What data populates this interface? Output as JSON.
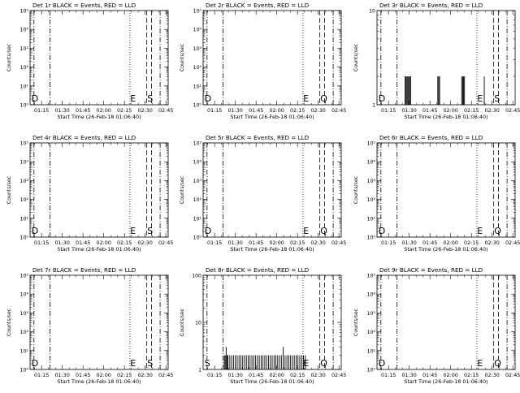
{
  "figure": {
    "background": "#ffffff",
    "ink_color": "#000000",
    "trace_color_events": "#000000"
  },
  "chart_data": [
    {
      "type": "line",
      "title": "Det 1r BLACK = Events, RED = LLD",
      "xlabel": "Start Time (26-Feb-18 01:06:40)",
      "ylabel": "Counts/sec",
      "xlim": [
        "01:06:40",
        "02:46:40"
      ],
      "x_ticks": [
        "01:15",
        "01:30",
        "01:45",
        "02:00",
        "02:15",
        "02:30",
        "02:45"
      ],
      "y_scale": "log",
      "ylim": [
        1,
        100000
      ],
      "y_ticks": [
        "10^0",
        "10^1",
        "10^2",
        "10^3",
        "10^4",
        "10^5"
      ],
      "markers": [
        {
          "time": "01:09:30",
          "style": "dash-dot"
        },
        {
          "time": "01:21:10",
          "style": "dash-dot"
        },
        {
          "time": "02:19:00",
          "style": "dotted"
        },
        {
          "time": "02:31:10",
          "style": "dashed"
        },
        {
          "time": "02:34:40",
          "style": "dashed"
        },
        {
          "time": "02:40:50",
          "style": "dash-dot"
        }
      ],
      "marker_labels": [
        {
          "text": "D",
          "time": "01:07:40"
        },
        {
          "text": "E",
          "time": "02:19:10"
        },
        {
          "text": "S",
          "time": "02:31:30"
        }
      ],
      "series": []
    },
    {
      "type": "line",
      "title": "Det 2r BLACK = Events, RED = LLD",
      "xlabel": "Start Time (26-Feb-18 01:06:40)",
      "ylabel": "Counts/sec",
      "xlim": [
        "01:06:40",
        "02:46:40"
      ],
      "x_ticks": [
        "01:15",
        "01:30",
        "01:45",
        "02:00",
        "02:15",
        "02:30",
        "02:45"
      ],
      "y_scale": "log",
      "ylim": [
        1,
        100000
      ],
      "y_ticks": [
        "10^0",
        "10^1",
        "10^2",
        "10^3",
        "10^4",
        "10^5"
      ],
      "markers": [
        {
          "time": "01:09:30",
          "style": "dash-dot"
        },
        {
          "time": "01:21:10",
          "style": "dash-dot"
        },
        {
          "time": "02:19:00",
          "style": "dotted"
        },
        {
          "time": "02:31:10",
          "style": "dashed"
        },
        {
          "time": "02:34:40",
          "style": "dashed"
        },
        {
          "time": "02:40:50",
          "style": "dash-dot"
        }
      ],
      "marker_labels": [
        {
          "text": "D",
          "time": "01:07:40"
        },
        {
          "text": "E",
          "time": "02:19:10"
        },
        {
          "text": "Q",
          "time": "02:31:30"
        }
      ],
      "series": []
    },
    {
      "type": "line",
      "title": "Det 3r BLACK = Events, RED = LLD",
      "xlabel": "Start Time (26-Feb-18 01:06:40)",
      "ylabel": "Counts/sec",
      "xlim": [
        "01:06:40",
        "02:46:40"
      ],
      "x_ticks": [
        "01:15",
        "01:30",
        "01:45",
        "02:00",
        "02:15",
        "02:30",
        "02:45"
      ],
      "y_scale": "log",
      "ylim": [
        1,
        10
      ],
      "y_ticks": [
        "1",
        "10"
      ],
      "markers": [
        {
          "time": "01:09:30",
          "style": "dash-dot"
        },
        {
          "time": "01:21:10",
          "style": "dash-dot"
        },
        {
          "time": "02:19:00",
          "style": "dotted"
        },
        {
          "time": "02:31:10",
          "style": "dashed"
        },
        {
          "time": "02:34:40",
          "style": "dashed"
        },
        {
          "time": "02:40:50",
          "style": "dash-dot"
        }
      ],
      "marker_labels": [
        {
          "text": "D",
          "time": "01:07:40"
        },
        {
          "text": "E",
          "time": "02:19:10"
        },
        {
          "text": "S",
          "time": "02:31:30"
        }
      ],
      "series": [
        {
          "spikes": [
            {
              "time": "01:27:00",
              "value": 2
            },
            {
              "time": "01:27:40",
              "value": 2
            },
            {
              "time": "01:28:20",
              "value": 2
            },
            {
              "time": "01:29:00",
              "value": 2
            },
            {
              "time": "01:29:40",
              "value": 2
            },
            {
              "time": "01:30:20",
              "value": 2
            },
            {
              "time": "01:31:00",
              "value": 2
            },
            {
              "time": "01:50:40",
              "value": 2
            },
            {
              "time": "01:51:20",
              "value": 2
            },
            {
              "time": "01:52:00",
              "value": 2
            },
            {
              "time": "02:08:00",
              "value": 2
            },
            {
              "time": "02:08:40",
              "value": 2
            },
            {
              "time": "02:09:20",
              "value": 2
            },
            {
              "time": "02:10:00",
              "value": 2
            },
            {
              "time": "02:24:20",
              "value": 2
            }
          ]
        }
      ]
    },
    {
      "type": "line",
      "title": "Det 4r BLACK = Events, RED = LLD",
      "xlabel": "Start Time (26-Feb-18 01:06:40)",
      "ylabel": "Counts/sec",
      "xlim": [
        "01:06:40",
        "02:46:40"
      ],
      "x_ticks": [
        "01:15",
        "01:30",
        "01:45",
        "02:00",
        "02:15",
        "02:30",
        "02:45"
      ],
      "y_scale": "log",
      "ylim": [
        1,
        100000
      ],
      "y_ticks": [
        "10^0",
        "10^1",
        "10^2",
        "10^3",
        "10^4",
        "10^5"
      ],
      "markers": [
        {
          "time": "01:09:30",
          "style": "dash-dot"
        },
        {
          "time": "01:21:10",
          "style": "dash-dot"
        },
        {
          "time": "02:19:00",
          "style": "dotted"
        },
        {
          "time": "02:31:10",
          "style": "dashed"
        },
        {
          "time": "02:34:40",
          "style": "dashed"
        },
        {
          "time": "02:40:50",
          "style": "dash-dot"
        }
      ],
      "marker_labels": [
        {
          "text": "D",
          "time": "01:07:40"
        },
        {
          "text": "E",
          "time": "02:19:10"
        },
        {
          "text": "S",
          "time": "02:31:30"
        }
      ],
      "series": []
    },
    {
      "type": "line",
      "title": "Det 5r BLACK = Events, RED = LLD",
      "xlabel": "Start Time (26-Feb-18 01:06:40)",
      "ylabel": "Counts/sec",
      "xlim": [
        "01:06:40",
        "02:46:40"
      ],
      "x_ticks": [
        "01:15",
        "01:30",
        "01:45",
        "02:00",
        "02:15",
        "02:30",
        "02:45"
      ],
      "y_scale": "log",
      "ylim": [
        1,
        100000
      ],
      "y_ticks": [
        "10^0",
        "10^1",
        "10^2",
        "10^3",
        "10^4",
        "10^5"
      ],
      "markers": [
        {
          "time": "01:09:30",
          "style": "dash-dot"
        },
        {
          "time": "01:21:10",
          "style": "dash-dot"
        },
        {
          "time": "02:19:00",
          "style": "dotted"
        },
        {
          "time": "02:31:10",
          "style": "dashed"
        },
        {
          "time": "02:34:40",
          "style": "dashed"
        },
        {
          "time": "02:40:50",
          "style": "dash-dot"
        }
      ],
      "marker_labels": [
        {
          "text": "D",
          "time": "01:07:40"
        },
        {
          "text": "E",
          "time": "02:19:10"
        },
        {
          "text": "Q",
          "time": "02:31:30"
        }
      ],
      "series": []
    },
    {
      "type": "line",
      "title": "Det 6r BLACK = Events, RED = LLD",
      "xlabel": "Start Time (26-Feb-18 01:06:40)",
      "ylabel": "Counts/sec",
      "xlim": [
        "01:06:40",
        "02:46:40"
      ],
      "x_ticks": [
        "01:15",
        "01:30",
        "01:45",
        "02:00",
        "02:15",
        "02:30",
        "02:45"
      ],
      "y_scale": "log",
      "ylim": [
        1,
        100000
      ],
      "y_ticks": [
        "10^0",
        "10^1",
        "10^2",
        "10^3",
        "10^4",
        "10^5"
      ],
      "markers": [
        {
          "time": "01:09:30",
          "style": "dash-dot"
        },
        {
          "time": "01:21:10",
          "style": "dash-dot"
        },
        {
          "time": "02:19:00",
          "style": "dotted"
        },
        {
          "time": "02:31:10",
          "style": "dashed"
        },
        {
          "time": "02:34:40",
          "style": "dashed"
        },
        {
          "time": "02:40:50",
          "style": "dash-dot"
        }
      ],
      "marker_labels": [
        {
          "text": "D",
          "time": "01:07:40"
        },
        {
          "text": "E",
          "time": "02:19:10"
        },
        {
          "text": "Q",
          "time": "02:31:30"
        }
      ],
      "series": []
    },
    {
      "type": "line",
      "title": "Det 7r BLACK = Events, RED = LLD",
      "xlabel": "Start Time (26-Feb-18 01:06:40)",
      "ylabel": "Counts/sec",
      "xlim": [
        "01:06:40",
        "02:46:40"
      ],
      "x_ticks": [
        "01:15",
        "01:30",
        "01:45",
        "02:00",
        "02:15",
        "02:30",
        "02:45"
      ],
      "y_scale": "log",
      "ylim": [
        1,
        100000
      ],
      "y_ticks": [
        "10^0",
        "10^1",
        "10^2",
        "10^3",
        "10^4",
        "10^5"
      ],
      "markers": [
        {
          "time": "01:09:30",
          "style": "dash-dot"
        },
        {
          "time": "01:21:10",
          "style": "dash-dot"
        },
        {
          "time": "02:19:00",
          "style": "dotted"
        },
        {
          "time": "02:31:10",
          "style": "dashed"
        },
        {
          "time": "02:34:40",
          "style": "dashed"
        },
        {
          "time": "02:40:50",
          "style": "dash-dot"
        }
      ],
      "marker_labels": [
        {
          "text": "D",
          "time": "01:07:40"
        },
        {
          "text": "E",
          "time": "02:19:10"
        },
        {
          "text": "S",
          "time": "02:31:30"
        }
      ],
      "series": []
    },
    {
      "type": "line",
      "title": "Det 8r BLACK = Events, RED = LLD",
      "xlabel": "Start Time (26-Feb-18 01:06:40)",
      "ylabel": "Counts/sec",
      "xlim": [
        "01:06:40",
        "02:46:40"
      ],
      "x_ticks": [
        "01:15",
        "01:30",
        "01:45",
        "02:00",
        "02:15",
        "02:30",
        "02:45"
      ],
      "y_scale": "log",
      "ylim": [
        1,
        100
      ],
      "y_ticks": [
        "1",
        "10",
        "100"
      ],
      "markers": [
        {
          "time": "01:09:30",
          "style": "dash-dot"
        },
        {
          "time": "01:21:10",
          "style": "dash-dot"
        },
        {
          "time": "02:19:00",
          "style": "dotted"
        },
        {
          "time": "02:31:10",
          "style": "dashed"
        },
        {
          "time": "02:34:40",
          "style": "dashed"
        },
        {
          "time": "02:40:50",
          "style": "dash-dot"
        }
      ],
      "marker_labels": [
        {
          "text": "S",
          "time": "01:07:40"
        },
        {
          "text": "E",
          "time": "02:19:10"
        },
        {
          "text": "Q",
          "time": "02:31:30"
        }
      ],
      "series": [
        {
          "spikes": [
            {
              "time": "01:22:00",
              "value": 2
            },
            {
              "time": "01:22:40",
              "value": 2
            },
            {
              "time": "01:23:20",
              "value": 3
            },
            {
              "time": "01:24:00",
              "value": 2
            },
            {
              "time": "01:24:40",
              "value": 2
            },
            {
              "time": "01:26:00",
              "value": 2
            },
            {
              "time": "01:27:20",
              "value": 2
            },
            {
              "time": "01:28:40",
              "value": 2
            },
            {
              "time": "01:30:00",
              "value": 2
            },
            {
              "time": "01:31:20",
              "value": 2
            },
            {
              "time": "01:32:40",
              "value": 2
            },
            {
              "time": "01:34:00",
              "value": 2
            },
            {
              "time": "01:35:20",
              "value": 2
            },
            {
              "time": "01:36:40",
              "value": 2
            },
            {
              "time": "01:38:00",
              "value": 2
            },
            {
              "time": "01:39:20",
              "value": 2
            },
            {
              "time": "01:40:40",
              "value": 2
            },
            {
              "time": "01:42:00",
              "value": 2
            },
            {
              "time": "01:43:20",
              "value": 2
            },
            {
              "time": "01:44:40",
              "value": 2
            },
            {
              "time": "01:46:00",
              "value": 2
            },
            {
              "time": "01:47:20",
              "value": 2
            },
            {
              "time": "01:48:40",
              "value": 2
            },
            {
              "time": "01:50:00",
              "value": 2
            },
            {
              "time": "01:51:20",
              "value": 2
            },
            {
              "time": "01:52:40",
              "value": 2
            },
            {
              "time": "01:54:00",
              "value": 2
            },
            {
              "time": "01:55:20",
              "value": 2
            },
            {
              "time": "01:56:40",
              "value": 2
            },
            {
              "time": "01:58:00",
              "value": 2
            },
            {
              "time": "01:59:20",
              "value": 2
            },
            {
              "time": "02:00:40",
              "value": 2
            },
            {
              "time": "02:02:00",
              "value": 2
            },
            {
              "time": "02:03:20",
              "value": 2
            },
            {
              "time": "02:04:40",
              "value": 3
            },
            {
              "time": "02:06:00",
              "value": 2
            },
            {
              "time": "02:07:20",
              "value": 2
            },
            {
              "time": "02:08:40",
              "value": 2
            },
            {
              "time": "02:10:00",
              "value": 2
            },
            {
              "time": "02:11:20",
              "value": 2
            },
            {
              "time": "02:12:40",
              "value": 2
            },
            {
              "time": "02:14:00",
              "value": 2
            },
            {
              "time": "02:15:20",
              "value": 2
            },
            {
              "time": "02:16:40",
              "value": 2
            },
            {
              "time": "02:18:00",
              "value": 2
            },
            {
              "time": "02:19:20",
              "value": 2
            },
            {
              "time": "02:20:40",
              "value": 2
            }
          ]
        }
      ]
    },
    {
      "type": "line",
      "title": "Det 9r BLACK = Events, RED = LLD",
      "xlabel": "Start Time (26-Feb-18 01:06:40)",
      "ylabel": "Counts/sec",
      "xlim": [
        "01:06:40",
        "02:46:40"
      ],
      "x_ticks": [
        "01:15",
        "01:30",
        "01:45",
        "02:00",
        "02:15",
        "02:30",
        "02:45"
      ],
      "y_scale": "log",
      "ylim": [
        1,
        100000
      ],
      "y_ticks": [
        "10^0",
        "10^1",
        "10^2",
        "10^3",
        "10^4",
        "10^5"
      ],
      "markers": [
        {
          "time": "01:09:30",
          "style": "dash-dot"
        },
        {
          "time": "01:21:10",
          "style": "dash-dot"
        },
        {
          "time": "02:19:00",
          "style": "dotted"
        },
        {
          "time": "02:31:10",
          "style": "dashed"
        },
        {
          "time": "02:34:40",
          "style": "dashed"
        },
        {
          "time": "02:40:50",
          "style": "dash-dot"
        }
      ],
      "marker_labels": [
        {
          "text": "D",
          "time": "01:07:40"
        },
        {
          "text": "E",
          "time": "02:19:10"
        },
        {
          "text": "Q",
          "time": "02:31:30"
        }
      ],
      "series": []
    }
  ]
}
